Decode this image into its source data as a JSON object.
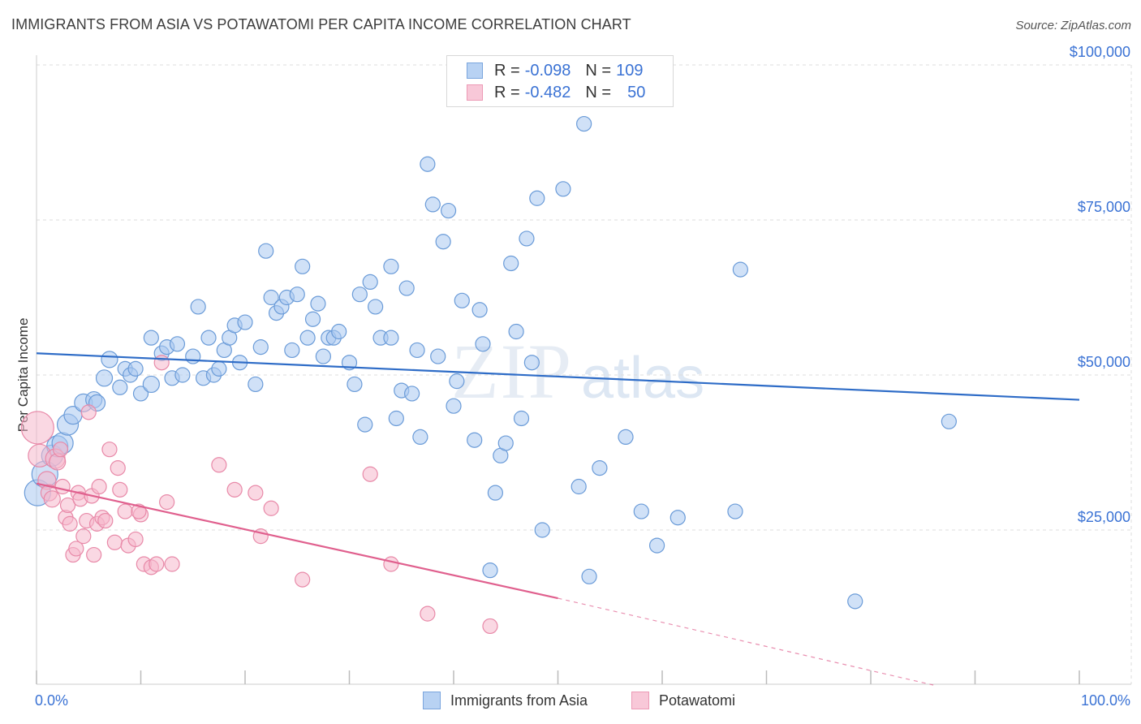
{
  "title": "IMMIGRANTS FROM ASIA VS POTAWATOMI PER CAPITA INCOME CORRELATION CHART",
  "source": "Source: ZipAtlas.com",
  "watermark": {
    "zip": "ZIP",
    "atlas": "atlas"
  },
  "legend": {
    "rows": [
      {
        "r_label": "R =",
        "r_value": "-0.098",
        "n_label": "N =",
        "n_value": "109"
      },
      {
        "r_label": "R =",
        "r_value": "-0.482",
        "n_label": "N =",
        "n_value": "50"
      }
    ]
  },
  "colors": {
    "blue_fill": "#a9c8f0",
    "blue_stroke": "#6a9bd8",
    "blue_line": "#2e6cc7",
    "pink_fill": "#f5b8cc",
    "pink_stroke": "#e889a8",
    "pink_line": "#e0608e",
    "axis_text_blue": "#3a72d4",
    "grid": "#dddddd"
  },
  "chart_data": {
    "type": "scatter",
    "title": "IMMIGRANTS FROM ASIA VS POTAWATOMI PER CAPITA INCOME CORRELATION CHART",
    "xlabel": "",
    "ylabel": "Per Capita Income",
    "xlim": [
      0,
      100
    ],
    "ylim": [
      0,
      103000
    ],
    "x_tick_labels": [
      "0.0%",
      "100.0%"
    ],
    "y_ticks": [
      25000,
      50000,
      75000,
      100000
    ],
    "y_tick_labels": [
      "$25,000",
      "$50,000",
      "$75,000",
      "$100,000"
    ],
    "grid": true,
    "legend_position": "top-center",
    "series": [
      {
        "name": "Immigrants from Asia",
        "color": "#a9c8f0",
        "trend": {
          "x": [
            0,
            100
          ],
          "y": [
            53500,
            46000
          ],
          "style": "solid"
        },
        "points": [
          [
            0.1,
            31000,
            16
          ],
          [
            0.8,
            34000,
            16
          ],
          [
            1.5,
            37000,
            13
          ],
          [
            2,
            38500,
            13
          ],
          [
            2.5,
            39000,
            13
          ],
          [
            3,
            42000,
            13
          ],
          [
            3.5,
            43500,
            11
          ],
          [
            4.5,
            45500,
            11
          ],
          [
            5.5,
            46000,
            10
          ],
          [
            5.8,
            45500,
            10
          ],
          [
            6.5,
            49500,
            10
          ],
          [
            7,
            52500,
            10
          ],
          [
            8,
            48000,
            9
          ],
          [
            8.5,
            51000,
            9
          ],
          [
            9,
            50000,
            9
          ],
          [
            9.5,
            51000,
            9
          ],
          [
            10,
            47000,
            9
          ],
          [
            11,
            48500,
            10
          ],
          [
            11,
            56000,
            9
          ],
          [
            12,
            53500,
            9
          ],
          [
            12.5,
            54500,
            9
          ],
          [
            13,
            49500,
            9
          ],
          [
            13.5,
            55000,
            9
          ],
          [
            14,
            50000,
            9
          ],
          [
            15,
            53000,
            9
          ],
          [
            15.5,
            61000,
            9
          ],
          [
            16,
            49500,
            9
          ],
          [
            16.5,
            56000,
            9
          ],
          [
            17,
            50000,
            9
          ],
          [
            17.5,
            51000,
            9
          ],
          [
            18,
            54000,
            9
          ],
          [
            18.5,
            56000,
            9
          ],
          [
            19,
            58000,
            9
          ],
          [
            19.5,
            52000,
            9
          ],
          [
            20,
            58500,
            9
          ],
          [
            21,
            48500,
            9
          ],
          [
            21.5,
            54500,
            9
          ],
          [
            22,
            70000,
            9
          ],
          [
            22.5,
            62500,
            9
          ],
          [
            23,
            60000,
            9
          ],
          [
            23.5,
            61000,
            9
          ],
          [
            24,
            62500,
            9
          ],
          [
            24.5,
            54000,
            9
          ],
          [
            25,
            63000,
            9
          ],
          [
            25.5,
            67500,
            9
          ],
          [
            26,
            56000,
            9
          ],
          [
            26.5,
            59000,
            9
          ],
          [
            27,
            61500,
            9
          ],
          [
            27.5,
            53000,
            9
          ],
          [
            28,
            56000,
            9
          ],
          [
            28.5,
            56000,
            9
          ],
          [
            29,
            57000,
            9
          ],
          [
            30,
            52000,
            9
          ],
          [
            30.5,
            48500,
            9
          ],
          [
            31,
            63000,
            9
          ],
          [
            31.5,
            42000,
            9
          ],
          [
            32,
            65000,
            9
          ],
          [
            32.5,
            61000,
            9
          ],
          [
            33,
            56000,
            9
          ],
          [
            34,
            56000,
            9
          ],
          [
            34,
            67500,
            9
          ],
          [
            34.5,
            43000,
            9
          ],
          [
            35,
            47500,
            9
          ],
          [
            35.5,
            64000,
            9
          ],
          [
            36,
            47000,
            9
          ],
          [
            36.5,
            54000,
            9
          ],
          [
            36.8,
            40000,
            9
          ],
          [
            37.5,
            84000,
            9
          ],
          [
            38,
            77500,
            9
          ],
          [
            38.5,
            53000,
            9
          ],
          [
            39,
            71500,
            9
          ],
          [
            39.5,
            76500,
            9
          ],
          [
            40,
            45000,
            9
          ],
          [
            40.3,
            49000,
            9
          ],
          [
            40.8,
            62000,
            9
          ],
          [
            42,
            39500,
            9
          ],
          [
            42.5,
            60500,
            9
          ],
          [
            42.8,
            55000,
            9
          ],
          [
            44,
            31000,
            9
          ],
          [
            44.5,
            37000,
            9
          ],
          [
            45,
            39000,
            9
          ],
          [
            45.5,
            68000,
            9
          ],
          [
            46,
            57000,
            9
          ],
          [
            46.5,
            43000,
            9
          ],
          [
            47,
            72000,
            9
          ],
          [
            47.5,
            52000,
            9
          ],
          [
            48,
            78500,
            9
          ],
          [
            48.5,
            25000,
            9
          ],
          [
            50.5,
            80000,
            9
          ],
          [
            52,
            32000,
            9
          ],
          [
            52.5,
            90500,
            9
          ],
          [
            53,
            17500,
            9
          ],
          [
            54,
            35000,
            9
          ],
          [
            56.5,
            40000,
            9
          ],
          [
            58,
            28000,
            9
          ],
          [
            59.5,
            22500,
            9
          ],
          [
            61.5,
            27000,
            9
          ],
          [
            67,
            28000,
            9
          ],
          [
            67.5,
            67000,
            9
          ],
          [
            78.5,
            13500,
            9
          ],
          [
            87.5,
            42500,
            9
          ],
          [
            43.5,
            18500,
            9
          ]
        ]
      },
      {
        "name": "Potawatomi",
        "color": "#f5b8cc",
        "trend": {
          "x": [
            0,
            50
          ],
          "y": [
            32500,
            14000
          ],
          "style": "solid",
          "extension": {
            "x": [
              50,
              86
            ],
            "y": [
              14000,
              0
            ],
            "style": "dashed"
          }
        },
        "points": [
          [
            0.1,
            41500,
            20
          ],
          [
            0.3,
            37000,
            14
          ],
          [
            1,
            33000,
            11
          ],
          [
            1.2,
            31000,
            10
          ],
          [
            1.5,
            30000,
            10
          ],
          [
            1.8,
            36500,
            12
          ],
          [
            2,
            36000,
            10
          ],
          [
            2.3,
            38000,
            9
          ],
          [
            2.5,
            32000,
            9
          ],
          [
            2.8,
            27000,
            9
          ],
          [
            3,
            29000,
            9
          ],
          [
            3.2,
            26000,
            9
          ],
          [
            3.5,
            21000,
            9
          ],
          [
            3.8,
            22000,
            9
          ],
          [
            4,
            31000,
            9
          ],
          [
            4.2,
            30000,
            9
          ],
          [
            4.5,
            24000,
            9
          ],
          [
            4.8,
            26500,
            9
          ],
          [
            5,
            44000,
            9
          ],
          [
            5.3,
            30500,
            9
          ],
          [
            5.5,
            21000,
            9
          ],
          [
            5.8,
            26000,
            9
          ],
          [
            6,
            32000,
            9
          ],
          [
            6.3,
            27000,
            9
          ],
          [
            6.6,
            26500,
            9
          ],
          [
            7,
            38000,
            9
          ],
          [
            7.5,
            23000,
            9
          ],
          [
            7.8,
            35000,
            9
          ],
          [
            8,
            31500,
            9
          ],
          [
            8.5,
            28000,
            9
          ],
          [
            8.8,
            22500,
            9
          ],
          [
            9.5,
            23500,
            9
          ],
          [
            10,
            27500,
            9
          ],
          [
            10.3,
            19500,
            9
          ],
          [
            11,
            19000,
            9
          ],
          [
            11.5,
            19500,
            9
          ],
          [
            12,
            52000,
            9
          ],
          [
            12.5,
            29500,
            9
          ],
          [
            13,
            19500,
            9
          ],
          [
            17.5,
            35500,
            9
          ],
          [
            19,
            31500,
            9
          ],
          [
            21,
            31000,
            9
          ],
          [
            21.5,
            24000,
            9
          ],
          [
            22.5,
            28500,
            9
          ],
          [
            25.5,
            17000,
            9
          ],
          [
            32,
            34000,
            9
          ],
          [
            34,
            19500,
            9
          ],
          [
            37.5,
            11500,
            9
          ],
          [
            43.5,
            9500,
            9
          ],
          [
            9.8,
            28000,
            9
          ]
        ]
      }
    ]
  },
  "bottom_legend": [
    {
      "label": "Immigrants from Asia"
    },
    {
      "label": "Potawatomi"
    }
  ]
}
